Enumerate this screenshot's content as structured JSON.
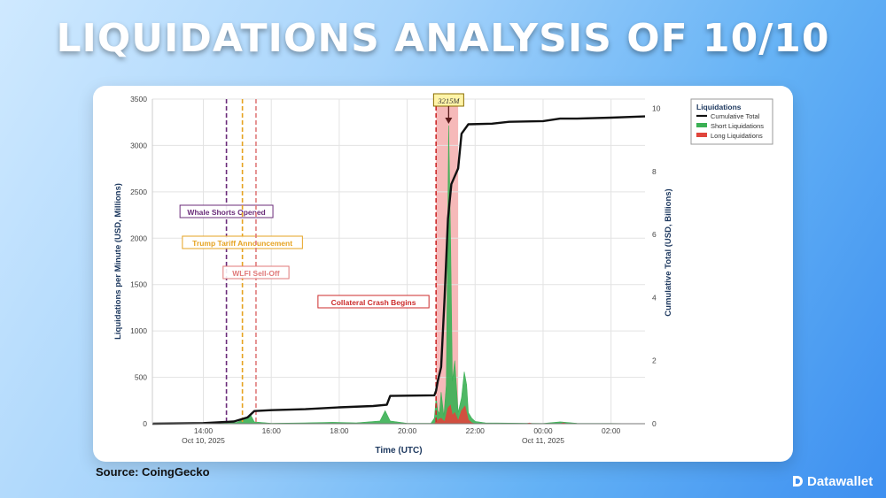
{
  "headline": "LIQUIDATIONS ANALYSIS OF 10/10",
  "source": "Source: CoingGecko",
  "brand": "Datawallet",
  "chart_data": {
    "type": "area",
    "xlabel": "Time (UTC)",
    "ylabel_left": "Liquidations per Minute (USD, Millions)",
    "ylabel_right": "Cumulative Total (USD, Billions)",
    "x_start": "2025-10-10 12:30",
    "xlim_hours": [
      12.5,
      27.0
    ],
    "ylim_left": [
      0,
      3500
    ],
    "ylim_right": [
      0,
      10.3
    ],
    "x_ticks": [
      {
        "hour": 14,
        "label": "14:00",
        "sublabel": "Oct 10, 2025"
      },
      {
        "hour": 16,
        "label": "16:00",
        "sublabel": ""
      },
      {
        "hour": 18,
        "label": "18:00",
        "sublabel": ""
      },
      {
        "hour": 20,
        "label": "20:00",
        "sublabel": ""
      },
      {
        "hour": 22,
        "label": "22:00",
        "sublabel": ""
      },
      {
        "hour": 24,
        "label": "00:00",
        "sublabel": "Oct 11, 2025"
      },
      {
        "hour": 26,
        "label": "02:00",
        "sublabel": ""
      }
    ],
    "y_ticks_left": [
      0,
      500,
      1000,
      1500,
      2000,
      2500,
      3000,
      3500
    ],
    "y_ticks_right": [
      0,
      2,
      4,
      6,
      8,
      10
    ],
    "grid": true,
    "legend_title": "Liquidations",
    "legend_position": "top-right",
    "series": [
      {
        "name": "Cumulative Total",
        "axis": "right",
        "style": "line",
        "color": "#111111",
        "points": [
          [
            12.5,
            0
          ],
          [
            14.0,
            0.02
          ],
          [
            14.9,
            0.07
          ],
          [
            15.3,
            0.2
          ],
          [
            15.5,
            0.4
          ],
          [
            16.0,
            0.43
          ],
          [
            17.0,
            0.46
          ],
          [
            18.0,
            0.52
          ],
          [
            19.0,
            0.56
          ],
          [
            19.4,
            0.6
          ],
          [
            19.5,
            0.88
          ],
          [
            20.0,
            0.89
          ],
          [
            20.8,
            0.9
          ],
          [
            20.85,
            1.05
          ],
          [
            20.9,
            1.35
          ],
          [
            21.0,
            1.8
          ],
          [
            21.1,
            4.0
          ],
          [
            21.2,
            6.5
          ],
          [
            21.3,
            7.6
          ],
          [
            21.5,
            8.1
          ],
          [
            21.6,
            9.2
          ],
          [
            21.8,
            9.5
          ],
          [
            22.5,
            9.52
          ],
          [
            23.0,
            9.58
          ],
          [
            24.0,
            9.6
          ],
          [
            24.5,
            9.68
          ],
          [
            25.0,
            9.68
          ],
          [
            26.0,
            9.71
          ],
          [
            27.0,
            9.75
          ]
        ]
      },
      {
        "name": "Short Liquidations",
        "axis": "left",
        "style": "area",
        "color": "#3bb054",
        "points": [
          [
            12.5,
            0
          ],
          [
            14.0,
            0
          ],
          [
            15.0,
            15
          ],
          [
            15.4,
            90
          ],
          [
            15.5,
            20
          ],
          [
            16.0,
            5
          ],
          [
            17.0,
            10
          ],
          [
            17.8,
            15
          ],
          [
            18.5,
            10
          ],
          [
            19.2,
            30
          ],
          [
            19.35,
            140
          ],
          [
            19.5,
            30
          ],
          [
            20.0,
            5
          ],
          [
            20.7,
            5
          ],
          [
            20.8,
            60
          ],
          [
            20.85,
            280
          ],
          [
            20.9,
            140
          ],
          [
            20.95,
            110
          ],
          [
            21.0,
            340
          ],
          [
            21.08,
            80
          ],
          [
            21.15,
            420
          ],
          [
            21.22,
            3215
          ],
          [
            21.28,
            1900
          ],
          [
            21.33,
            460
          ],
          [
            21.4,
            680
          ],
          [
            21.5,
            120
          ],
          [
            21.6,
            280
          ],
          [
            21.68,
            560
          ],
          [
            21.75,
            420
          ],
          [
            21.8,
            120
          ],
          [
            21.9,
            60
          ],
          [
            22.0,
            25
          ],
          [
            22.3,
            10
          ],
          [
            24.0,
            3
          ],
          [
            24.5,
            20
          ],
          [
            25.0,
            5
          ],
          [
            26.0,
            3
          ],
          [
            27.0,
            0
          ]
        ]
      },
      {
        "name": "Long Liquidations",
        "axis": "left",
        "style": "area",
        "color": "#e0453c",
        "points": [
          [
            12.5,
            0
          ],
          [
            20.8,
            0
          ],
          [
            20.9,
            40
          ],
          [
            21.0,
            60
          ],
          [
            21.1,
            20
          ],
          [
            21.2,
            170
          ],
          [
            21.27,
            200
          ],
          [
            21.33,
            90
          ],
          [
            21.4,
            120
          ],
          [
            21.5,
            30
          ],
          [
            21.6,
            140
          ],
          [
            21.7,
            190
          ],
          [
            21.8,
            40
          ],
          [
            21.9,
            10
          ],
          [
            22.0,
            0
          ],
          [
            23.5,
            0
          ],
          [
            23.6,
            8
          ],
          [
            23.7,
            0
          ],
          [
            24.5,
            0
          ],
          [
            24.6,
            10
          ],
          [
            24.7,
            0
          ],
          [
            27.0,
            0
          ]
        ]
      }
    ],
    "event_lines": [
      {
        "hour": 14.68,
        "label": "Whale Shorts Opened",
        "color": "#6b2d7a"
      },
      {
        "hour": 15.15,
        "label": "Trump Tariff Announcement",
        "color": "#e6a321"
      },
      {
        "hour": 15.55,
        "label": "WLFI Sell-Off",
        "color": "#e07a7a"
      },
      {
        "hour": 20.85,
        "label": "Collateral Crash Begins",
        "color": "#cc2b2b"
      }
    ],
    "highlight_window": {
      "start": 20.85,
      "end": 21.5,
      "color": "#f3a2a2"
    },
    "peak_annotation": {
      "hour": 21.22,
      "value": 3215,
      "label": "3215M"
    }
  }
}
